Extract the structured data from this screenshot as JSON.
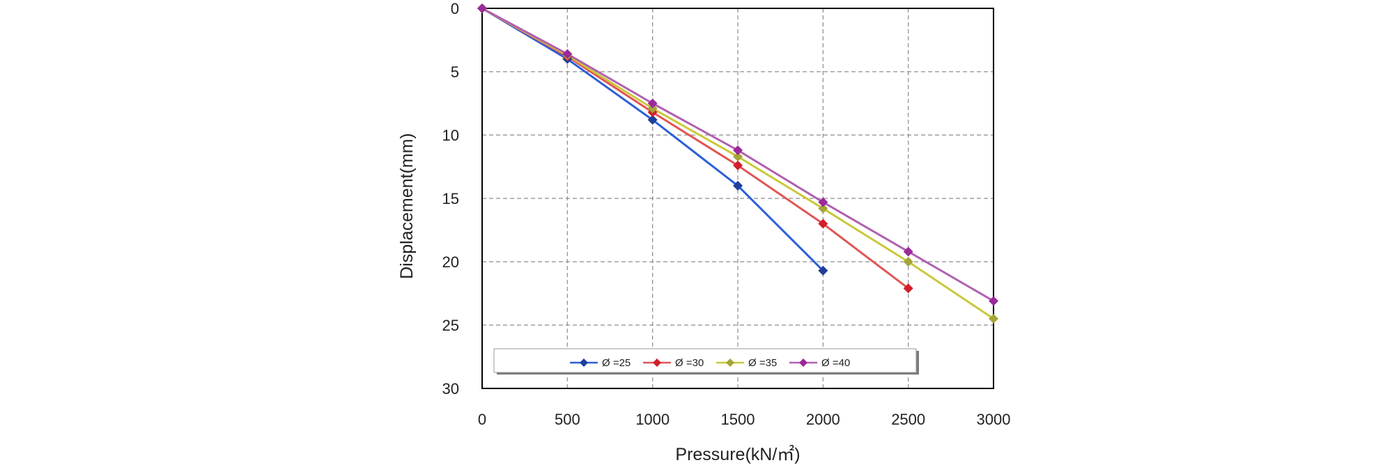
{
  "chart_data": {
    "type": "line",
    "title": "",
    "xlabel": "Pressure(kN/㎡)",
    "ylabel": "Displacement(mm)",
    "xlim": [
      0,
      3000
    ],
    "ylim": [
      0,
      30
    ],
    "y_inverted": true,
    "x_ticks": [
      0,
      500,
      1000,
      1500,
      2000,
      2500,
      3000
    ],
    "y_ticks": [
      0,
      5,
      10,
      15,
      20,
      25,
      30
    ],
    "x_tick_labels": [
      "0",
      "500",
      "1000",
      "1500",
      "2000",
      "2500",
      "3000"
    ],
    "y_tick_labels": [
      "0",
      "5",
      "10",
      "15",
      "20",
      "25",
      "30"
    ],
    "grid": true,
    "legend_position": "bottom-inside",
    "series": [
      {
        "name": "Ø =25",
        "color": "#2b5fd9",
        "marker_color": "#1f3f9a",
        "x": [
          0,
          500,
          1000,
          1500,
          2000
        ],
        "y": [
          0,
          4.0,
          8.8,
          14.0,
          20.7
        ]
      },
      {
        "name": "Ø =30",
        "color": "#e05555",
        "marker_color": "#d01f2a",
        "x": [
          0,
          500,
          1000,
          1500,
          2000,
          2500
        ],
        "y": [
          0,
          3.8,
          8.2,
          12.4,
          17.0,
          22.1
        ]
      },
      {
        "name": "Ø =35",
        "color": "#c9c93a",
        "marker_color": "#a5a53a",
        "x": [
          0,
          500,
          1000,
          1500,
          2000,
          2500,
          3000
        ],
        "y": [
          0,
          3.7,
          7.9,
          11.7,
          15.8,
          20.0,
          24.5
        ]
      },
      {
        "name": "Ø =40",
        "color": "#b060b0",
        "marker_color": "#9a2a9a",
        "x": [
          0,
          500,
          1000,
          1500,
          2000,
          2500,
          3000
        ],
        "y": [
          0,
          3.6,
          7.5,
          11.2,
          15.3,
          19.2,
          23.1
        ]
      }
    ]
  }
}
